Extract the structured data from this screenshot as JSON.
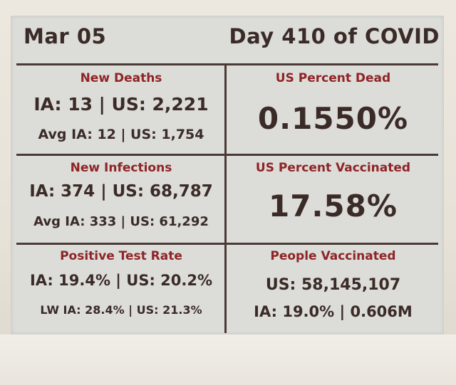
{
  "header": {
    "date": "Mar 05",
    "day": "Day 410 of COVID"
  },
  "cells": {
    "new_deaths": {
      "title": "New Deaths",
      "line1": "IA: 13 | US: 2,221",
      "line2": "Avg IA: 12 | US: 1,754"
    },
    "us_percent_dead": {
      "title": "US Percent Dead",
      "value": "0.1550%"
    },
    "new_infections": {
      "title": "New Infections",
      "line1": "IA: 374 | US: 68,787",
      "line2": "Avg IA: 333 | US: 61,292"
    },
    "us_percent_vaccinated": {
      "title": "US Percent Vaccinated",
      "value": "17.58%"
    },
    "positive_test_rate": {
      "title": "Positive Test Rate",
      "line1": "IA: 19.4% | US: 20.2%",
      "line2": "LW IA: 28.4% | US: 21.3%"
    },
    "people_vaccinated": {
      "title": "People Vaccinated",
      "line1": "US: 58,145,107",
      "line2": "IA: 19.0% | 0.606M"
    }
  },
  "colors": {
    "text_dark": "#3a2b27",
    "text_accent": "#8f2426",
    "screen_bg": "#dcdcd8",
    "grid_lines": "#4a3a36"
  }
}
